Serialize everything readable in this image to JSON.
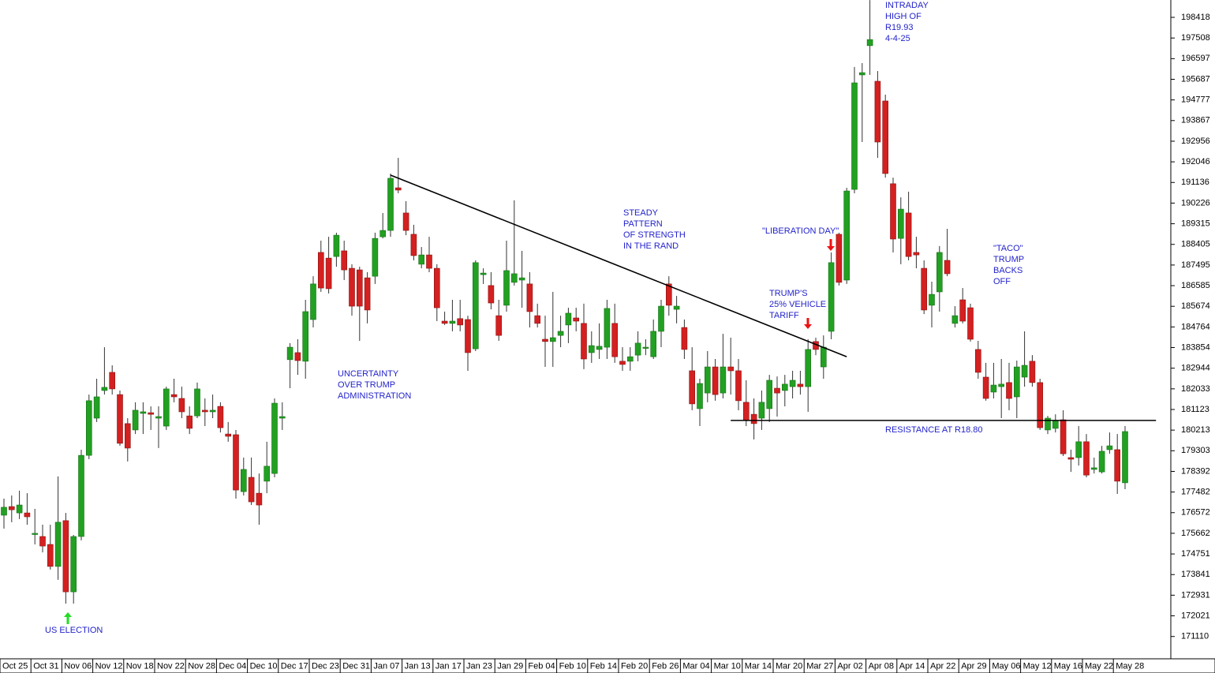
{
  "chart_data": {
    "type": "candlestick",
    "categories": [
      "Oct 25",
      null,
      null,
      null,
      "Oct 31",
      null,
      null,
      null,
      "Nov 06",
      null,
      null,
      null,
      "Nov 12",
      null,
      null,
      null,
      "Nov 18",
      null,
      null,
      null,
      "Nov 22",
      null,
      null,
      null,
      "Nov 28",
      null,
      null,
      null,
      "Dec 04",
      null,
      null,
      null,
      "Dec 10",
      null,
      null,
      null,
      "Dec 17",
      null,
      null,
      null,
      "Dec 23",
      null,
      null,
      null,
      "Dec 31",
      null,
      null,
      null,
      "Jan 07",
      null,
      null,
      null,
      "Jan 13",
      null,
      null,
      null,
      "Jan 17",
      null,
      null,
      null,
      "Jan 23",
      null,
      null,
      null,
      "Jan 29",
      null,
      null,
      null,
      "Feb 04",
      null,
      null,
      null,
      "Feb 10",
      null,
      null,
      null,
      "Feb 14",
      null,
      null,
      null,
      "Feb 20",
      null,
      null,
      null,
      "Feb 26",
      null,
      null,
      null,
      "Mar 04",
      null,
      null,
      null,
      "Mar 10",
      null,
      null,
      null,
      "Mar 14",
      null,
      null,
      null,
      "Mar 20",
      null,
      null,
      null,
      "Mar 27",
      null,
      null,
      null,
      "Apr 02",
      null,
      null,
      null,
      "Apr 08",
      null,
      null,
      null,
      "Apr 14",
      null,
      null,
      null,
      "Apr 22",
      null,
      null,
      null,
      "Apr 29",
      null,
      null,
      null,
      "May 06",
      null,
      null,
      null,
      "May 12",
      null,
      null,
      null,
      "May 16",
      null,
      null,
      null,
      "May 22",
      null,
      null,
      null,
      "May 28",
      null
    ],
    "open": [
      176460,
      176840,
      176560,
      176560,
      175620,
      175520,
      175170,
      174200,
      176220,
      173080,
      175520,
      179100,
      180740,
      181960,
      182760,
      181780,
      180500,
      180220,
      180950,
      180980,
      180740,
      180390,
      181780,
      181610,
      180840,
      180840,
      181090,
      181020,
      181260,
      180040,
      180010,
      177500,
      178130,
      177430,
      177960,
      178300,
      180740,
      183320,
      183630,
      183250,
      185090,
      188050,
      187800,
      187870,
      188120,
      187350,
      187280,
      186930,
      187000,
      188740,
      189020,
      190900,
      189790,
      188850,
      187530,
      187940,
      187350,
      185020,
      184920,
      185130,
      185090,
      183800,
      187070,
      186590,
      185260,
      185720,
      186730,
      186830,
      186660,
      185260,
      184220,
      184120,
      184390,
      184850,
      185160,
      184920,
      183630,
      183770,
      183870,
      184920,
      183250,
      183250,
      183520,
      183840,
      183450,
      184570,
      186660,
      185540,
      184740,
      182830,
      181160,
      181850,
      183000,
      181850,
      183000,
      182830,
      181440,
      180910,
      180740,
      181160,
      182060,
      181960,
      182130,
      182240,
      182130,
      184120,
      183000,
      184570,
      188850,
      186830,
      190830,
      195880,
      197170,
      195600,
      194730,
      191080,
      188670,
      189790,
      188050,
      187350,
      185720,
      186310,
      187700,
      184920,
      185960,
      185610,
      183770,
      182550,
      181890,
      182130,
      182310,
      181680,
      182550,
      183250,
      182310,
      180220,
      180290,
      180670,
      179000,
      179000,
      179700,
      178480,
      178370,
      179350,
      179350,
      177890
    ],
    "high": [
      177190,
      177330,
      177540,
      177430,
      176740,
      176040,
      176040,
      178170,
      176560,
      175590,
      179350,
      181780,
      182480,
      183870,
      183070,
      181960,
      180740,
      181440,
      181440,
      181260,
      181260,
      182130,
      182480,
      182130,
      181260,
      182310,
      181610,
      181780,
      181440,
      180570,
      180220,
      179000,
      179000,
      178300,
      179700,
      181610,
      181440,
      184050,
      184220,
      185960,
      187000,
      188570,
      188740,
      188920,
      188570,
      187530,
      187420,
      187180,
      188920,
      189790,
      191530,
      192220,
      190310,
      189270,
      188290,
      188740,
      187530,
      185440,
      185960,
      185960,
      185260,
      187700,
      187350,
      187180,
      185960,
      188570,
      190350,
      188120,
      187180,
      185790,
      185260,
      186310,
      185260,
      185610,
      185610,
      185790,
      184570,
      184920,
      185960,
      185790,
      183870,
      183870,
      184570,
      184220,
      185090,
      185960,
      187000,
      186130,
      185090,
      183870,
      182480,
      183700,
      183350,
      184460,
      184290,
      183350,
      182410,
      181610,
      181960,
      182650,
      182580,
      182650,
      182830,
      182830,
      184220,
      184290,
      184390,
      188050,
      188920,
      190900,
      196230,
      196400,
      199180,
      196050,
      195010,
      191350,
      190480,
      190730,
      188740,
      187700,
      186760,
      188330,
      189090,
      185680,
      186480,
      185790,
      184150,
      183180,
      183180,
      183350,
      183180,
      183280,
      184570,
      183520,
      182480,
      180840,
      180910,
      181090,
      179350,
      180390,
      180040,
      179000,
      179520,
      180110,
      180040,
      180390
    ],
    "low": [
      175870,
      176150,
      176290,
      176040,
      175170,
      174820,
      174060,
      173610,
      172560,
      172560,
      175350,
      178930,
      180570,
      181780,
      181780,
      179520,
      178830,
      180040,
      180040,
      180220,
      179420,
      180220,
      181440,
      180740,
      180040,
      180740,
      180390,
      180740,
      180110,
      179700,
      177190,
      177330,
      176910,
      176040,
      177430,
      178130,
      180220,
      182060,
      182650,
      182480,
      184740,
      186310,
      186240,
      187420,
      186830,
      185260,
      184150,
      184920,
      186660,
      188670,
      188740,
      190660,
      188810,
      187700,
      187350,
      187180,
      185020,
      184850,
      184570,
      184570,
      182830,
      183700,
      186660,
      185540,
      184150,
      185440,
      186590,
      185610,
      184740,
      184740,
      183000,
      183000,
      183870,
      184050,
      184570,
      182900,
      183180,
      183350,
      183350,
      183180,
      182830,
      182830,
      183250,
      183520,
      183350,
      183870,
      185260,
      184920,
      183350,
      181090,
      180390,
      181440,
      181510,
      181610,
      181780,
      181090,
      180390,
      179800,
      180220,
      180570,
      180810,
      181260,
      181610,
      181780,
      181020,
      183520,
      182480,
      184220,
      186590,
      186660,
      190660,
      192920,
      195880,
      192220,
      191350,
      188050,
      187530,
      187700,
      187350,
      185330,
      184740,
      185440,
      187000,
      184740,
      184920,
      184120,
      182480,
      181510,
      181610,
      180740,
      181090,
      180740,
      182130,
      182130,
      180220,
      180040,
      180110,
      179070,
      178370,
      178650,
      178130,
      178300,
      178300,
      179170,
      177400,
      177610
    ],
    "close": [
      176810,
      176700,
      176910,
      176390,
      175660,
      175100,
      174200,
      176150,
      173080,
      175520,
      179100,
      181510,
      181680,
      182100,
      182030,
      179630,
      179420,
      181090,
      181020,
      180910,
      180810,
      182030,
      181680,
      181020,
      180290,
      182030,
      181020,
      181090,
      180320,
      179940,
      177570,
      178480,
      177050,
      176910,
      178620,
      181400,
      180810,
      183870,
      183280,
      185440,
      186660,
      186480,
      186450,
      188810,
      187280,
      185680,
      185680,
      185510,
      188670,
      189020,
      191320,
      190800,
      189020,
      187910,
      187940,
      187350,
      185610,
      184920,
      185020,
      184850,
      183630,
      187600,
      187140,
      185820,
      184390,
      187250,
      187110,
      186930,
      185440,
      184920,
      184120,
      184290,
      184570,
      185370,
      185020,
      183350,
      183940,
      183910,
      185580,
      183450,
      183110,
      183450,
      184050,
      183870,
      184570,
      185680,
      185720,
      185680,
      183770,
      181370,
      182270,
      183000,
      181780,
      183000,
      182830,
      181510,
      180640,
      180500,
      181440,
      182410,
      181850,
      182240,
      182410,
      182130,
      183770,
      183770,
      183870,
      187600,
      186730,
      190760,
      195530,
      195980,
      197440,
      192920,
      191530,
      188640,
      189960,
      187870,
      187940,
      185510,
      186200,
      188050,
      187110,
      185260,
      185020,
      184220,
      182760,
      181610,
      182200,
      182240,
      181610,
      183000,
      183070,
      182310,
      180320,
      180740,
      180640,
      179170,
      178930,
      179700,
      178230,
      178550,
      179280,
      179520,
      177960,
      180150
    ],
    "up_color": "#22a022",
    "down_color": "#d42020",
    "ylim": [
      170126,
      199184
    ],
    "yticks": [
      171110,
      172021,
      172931,
      173841,
      174751,
      175662,
      176572,
      177482,
      178392,
      179303,
      180213,
      181123,
      182033,
      182944,
      183854,
      184764,
      185674,
      186585,
      187495,
      188405,
      189315,
      190226,
      191136,
      192046,
      192956,
      193867,
      194777,
      195687,
      196597,
      197508,
      198418
    ],
    "lines": [
      {
        "x": [
          50,
          109
        ],
        "values": [
          191460,
          183450
        ]
      },
      {
        "x": [
          94,
          149
        ],
        "values": [
          180640,
          180640
        ]
      }
    ],
    "annotations": [
      {
        "lines": [
          "US ELECTION"
        ]
      },
      {
        "lines": [
          "UNCERTAINTY",
          "OVER TRUMP",
          "ADMINISTRATION"
        ]
      },
      {
        "lines": [
          "STEADY",
          "PATTERN",
          "OF STRENGTH",
          "IN THE RAND"
        ]
      },
      {
        "lines": [
          "\"LIBERATION DAY\""
        ]
      },
      {
        "lines": [
          "TRUMP'S",
          "25% VEHICLE",
          "TARIFF"
        ]
      },
      {
        "lines": [
          "INTRADAY",
          "HIGH OF",
          "R19.93",
          "4-4-25"
        ]
      },
      {
        "lines": [
          "\"TACO\"",
          "TRUMP",
          "BACKS",
          "OFF"
        ]
      },
      {
        "lines": [
          "RESISTANCE AT R18.80"
        ]
      }
    ],
    "annotation_color": "#2323cc"
  }
}
